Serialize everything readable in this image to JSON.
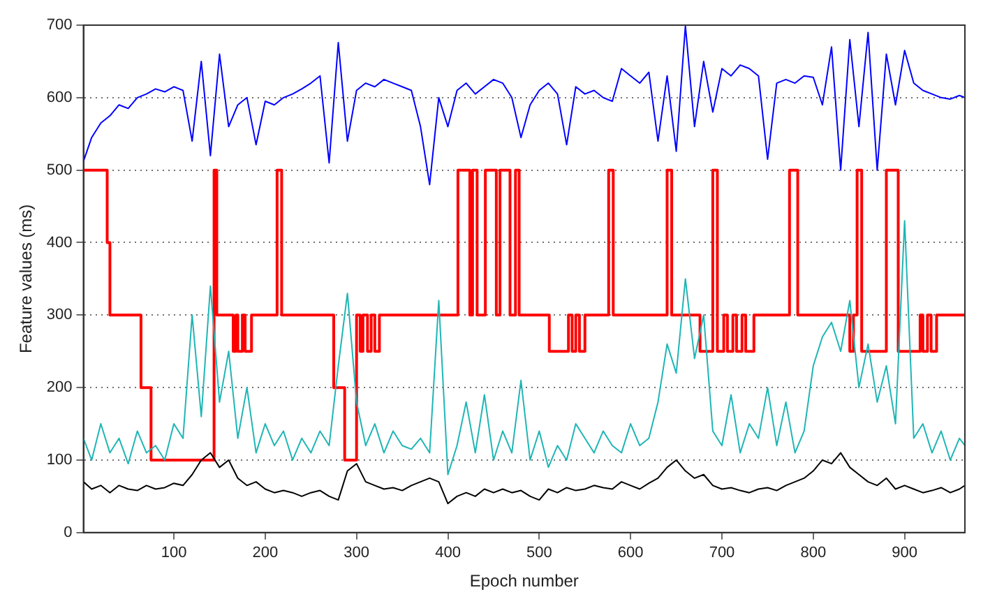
{
  "chart_data": {
    "type": "line",
    "xlabel": "Epoch number",
    "ylabel": "Feature values (ms)",
    "xlim": [
      1,
      966
    ],
    "xticks": [
      100,
      200,
      300,
      400,
      500,
      600,
      700,
      800,
      900
    ],
    "ylim": [
      0,
      700
    ],
    "yticks": [
      0,
      100,
      200,
      300,
      400,
      500,
      600,
      700
    ],
    "grid": "y",
    "legend": false,
    "marker": "none",
    "x": [
      1,
      10,
      20,
      30,
      40,
      50,
      60,
      70,
      80,
      90,
      100,
      110,
      120,
      130,
      140,
      150,
      160,
      170,
      180,
      190,
      200,
      210,
      220,
      230,
      240,
      250,
      260,
      270,
      280,
      290,
      300,
      310,
      320,
      330,
      340,
      350,
      360,
      370,
      380,
      390,
      400,
      410,
      420,
      430,
      440,
      450,
      460,
      470,
      480,
      490,
      500,
      510,
      520,
      530,
      540,
      550,
      560,
      570,
      580,
      590,
      600,
      610,
      620,
      630,
      640,
      650,
      660,
      670,
      680,
      690,
      700,
      710,
      720,
      730,
      740,
      750,
      760,
      770,
      780,
      790,
      800,
      810,
      820,
      830,
      840,
      850,
      860,
      870,
      880,
      890,
      900,
      910,
      920,
      930,
      940,
      950,
      960,
      966
    ],
    "series": [
      {
        "type": "line",
        "color": "#0000ff",
        "values": [
          512,
          545,
          565,
          575,
          590,
          585,
          600,
          605,
          612,
          608,
          615,
          610,
          540,
          650,
          520,
          660,
          560,
          590,
          600,
          535,
          595,
          590,
          600,
          605,
          612,
          620,
          630,
          510,
          676,
          540,
          610,
          620,
          615,
          625,
          620,
          615,
          610,
          560,
          480,
          600,
          560,
          610,
          620,
          605,
          615,
          625,
          620,
          600,
          545,
          590,
          610,
          620,
          605,
          535,
          615,
          605,
          610,
          600,
          595,
          640,
          630,
          620,
          635,
          540,
          630,
          526,
          699,
          560,
          650,
          580,
          640,
          630,
          645,
          640,
          630,
          515,
          620,
          625,
          620,
          630,
          628,
          590,
          670,
          500,
          680,
          560,
          690,
          500,
          660,
          590,
          665,
          620,
          610,
          605,
          600,
          598,
          603,
          600
        ]
      },
      {
        "type": "step",
        "color": "#ff0000",
        "x": [
          1,
          27,
          30,
          64,
          75,
          144,
          147,
          165,
          168,
          170,
          175,
          178,
          185,
          213,
          218,
          275,
          287,
          300,
          304,
          307,
          312,
          316,
          320,
          325,
          411,
          424,
          427,
          432,
          441,
          453,
          457,
          468,
          474,
          478,
          511,
          532,
          536,
          540,
          544,
          550,
          576,
          581,
          640,
          645,
          676,
          690,
          695,
          702,
          706,
          712,
          716,
          722,
          726,
          735,
          774,
          783,
          840,
          844,
          848,
          853,
          880,
          893,
          917,
          920,
          925,
          929,
          935,
          966
        ],
        "values": [
          500,
          400,
          300,
          200,
          100,
          500,
          300,
          250,
          300,
          250,
          300,
          250,
          300,
          500,
          300,
          200,
          100,
          300,
          250,
          300,
          250,
          300,
          250,
          300,
          500,
          300,
          500,
          300,
          500,
          300,
          500,
          300,
          500,
          300,
          250,
          300,
          250,
          300,
          250,
          300,
          500,
          300,
          500,
          300,
          250,
          500,
          250,
          300,
          250,
          300,
          250,
          300,
          250,
          300,
          500,
          300,
          250,
          300,
          500,
          250,
          500,
          250,
          300,
          250,
          300,
          250,
          300,
          300
        ]
      },
      {
        "type": "line",
        "color": "#1fb5b5",
        "values": [
          130,
          100,
          150,
          110,
          130,
          95,
          140,
          110,
          120,
          100,
          150,
          130,
          300,
          160,
          340,
          180,
          250,
          130,
          200,
          110,
          150,
          120,
          140,
          100,
          130,
          110,
          140,
          120,
          230,
          330,
          180,
          120,
          150,
          110,
          140,
          120,
          115,
          130,
          110,
          320,
          80,
          120,
          180,
          110,
          190,
          100,
          140,
          110,
          210,
          100,
          140,
          90,
          120,
          100,
          150,
          130,
          110,
          140,
          120,
          110,
          150,
          120,
          130,
          180,
          260,
          220,
          350,
          240,
          300,
          140,
          120,
          190,
          110,
          150,
          130,
          200,
          120,
          180,
          110,
          140,
          230,
          270,
          290,
          250,
          320,
          200,
          260,
          180,
          230,
          150,
          430,
          130,
          150,
          110,
          140,
          100,
          130,
          120
        ]
      },
      {
        "type": "line",
        "color": "#000000",
        "values": [
          70,
          60,
          65,
          55,
          65,
          60,
          58,
          65,
          60,
          62,
          68,
          65,
          80,
          100,
          110,
          90,
          100,
          75,
          65,
          70,
          60,
          55,
          58,
          55,
          50,
          55,
          58,
          50,
          45,
          85,
          95,
          70,
          65,
          60,
          62,
          58,
          65,
          70,
          75,
          70,
          40,
          50,
          55,
          50,
          60,
          55,
          60,
          55,
          58,
          50,
          45,
          60,
          55,
          62,
          58,
          60,
          65,
          62,
          60,
          70,
          65,
          60,
          68,
          75,
          90,
          100,
          85,
          75,
          80,
          65,
          60,
          62,
          58,
          55,
          60,
          62,
          58,
          65,
          70,
          75,
          85,
          100,
          95,
          110,
          90,
          80,
          70,
          65,
          75,
          60,
          65,
          60,
          55,
          58,
          62,
          55,
          60,
          65
        ]
      }
    ]
  }
}
